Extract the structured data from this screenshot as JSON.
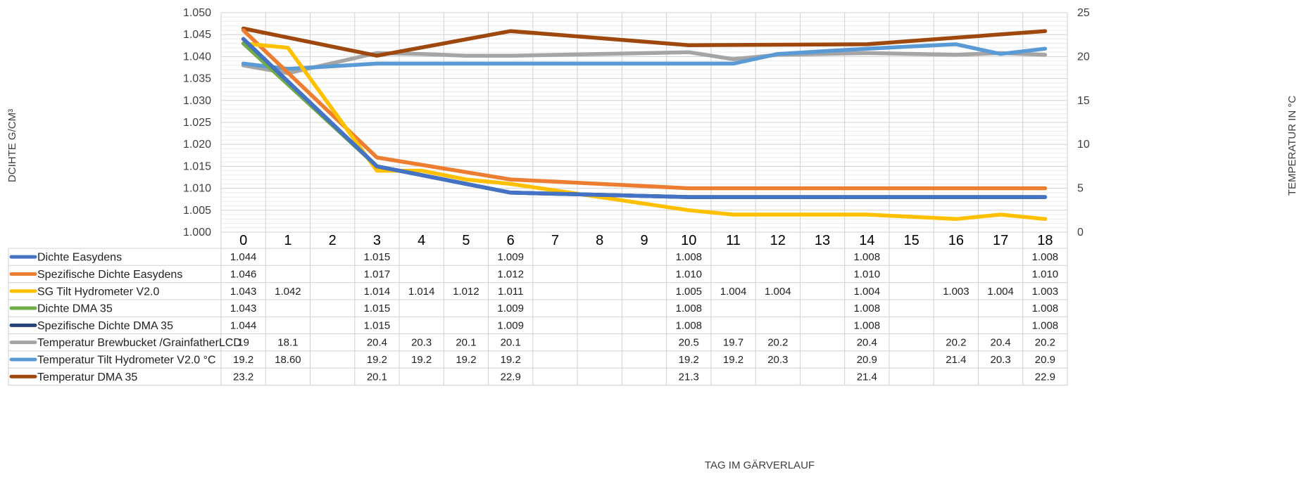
{
  "chart_data": {
    "type": "line",
    "title": "",
    "xlabel": "TAG IM GÄRVERLAUF",
    "ylabel_left": "DCIHTE G/CM³",
    "ylabel_right": "TEMPERATUR IN °C",
    "x": [
      0,
      1,
      2,
      3,
      4,
      5,
      6,
      7,
      8,
      9,
      10,
      11,
      12,
      13,
      14,
      15,
      16,
      17,
      18
    ],
    "x_labels": [
      "0",
      "1",
      "2",
      "3",
      "4",
      "5",
      "6",
      "7",
      "8",
      "9",
      "10",
      "11",
      "12",
      "13",
      "14",
      "15",
      "16",
      "17",
      "18"
    ],
    "ylim_left": [
      1.0,
      1.05
    ],
    "ylim_right": [
      0,
      25
    ],
    "y_ticks_left": [
      "1.000",
      "1.005",
      "1.010",
      "1.015",
      "1.020",
      "1.025",
      "1.030",
      "1.035",
      "1.040",
      "1.045",
      "1.050"
    ],
    "y_ticks_right": [
      "0",
      "5",
      "10",
      "15",
      "20",
      "25"
    ],
    "grid": true,
    "legend": "data-table",
    "series": [
      {
        "name": "Dichte Easydens",
        "axis": "left",
        "color": "#4472c4",
        "values": [
          1.044,
          null,
          null,
          1.015,
          null,
          null,
          1.009,
          null,
          null,
          null,
          1.008,
          null,
          null,
          null,
          1.008,
          null,
          null,
          null,
          1.008
        ],
        "labels": [
          "1.044",
          "",
          "",
          "1.015",
          "",
          "",
          "1.009",
          "",
          "",
          "",
          "1.008",
          "",
          "",
          "",
          "1.008",
          "",
          "",
          "",
          "1.008"
        ]
      },
      {
        "name": "Spezifische Dichte Easydens",
        "axis": "left",
        "color": "#ed7d31",
        "values": [
          1.046,
          null,
          null,
          1.017,
          null,
          null,
          1.012,
          null,
          null,
          null,
          1.01,
          null,
          null,
          null,
          1.01,
          null,
          null,
          null,
          1.01
        ],
        "labels": [
          "1.046",
          "",
          "",
          "1.017",
          "",
          "",
          "1.012",
          "",
          "",
          "",
          "1.010",
          "",
          "",
          "",
          "1.010",
          "",
          "",
          "",
          "1.010"
        ]
      },
      {
        "name": "SG Tilt Hydrometer V2.0",
        "axis": "left",
        "color": "#ffc000",
        "values": [
          1.043,
          1.042,
          null,
          1.014,
          1.014,
          1.012,
          1.011,
          null,
          null,
          null,
          1.005,
          1.004,
          1.004,
          null,
          1.004,
          null,
          1.003,
          1.004,
          1.003
        ],
        "labels": [
          "1.043",
          "1.042",
          "",
          "1.014",
          "1.014",
          "1.012",
          "1.011",
          "",
          "",
          "",
          "1.005",
          "1.004",
          "1.004",
          "",
          "1.004",
          "",
          "1.003",
          "1.004",
          "1.003"
        ]
      },
      {
        "name": "Dichte DMA 35",
        "axis": "left",
        "color": "#70ad47",
        "values": [
          1.043,
          null,
          null,
          1.015,
          null,
          null,
          1.009,
          null,
          null,
          null,
          1.008,
          null,
          null,
          null,
          1.008,
          null,
          null,
          null,
          1.008
        ],
        "labels": [
          "1.043",
          "",
          "",
          "1.015",
          "",
          "",
          "1.009",
          "",
          "",
          "",
          "1.008",
          "",
          "",
          "",
          "1.008",
          "",
          "",
          "",
          "1.008"
        ]
      },
      {
        "name": "Spezifische Dichte DMA 35",
        "axis": "left",
        "color": "#264478",
        "values": [
          1.044,
          null,
          null,
          1.015,
          null,
          null,
          1.009,
          null,
          null,
          null,
          1.008,
          null,
          null,
          null,
          1.008,
          null,
          null,
          null,
          1.008
        ],
        "labels": [
          "1.044",
          "",
          "",
          "1.015",
          "",
          "",
          "1.009",
          "",
          "",
          "",
          "1.008",
          "",
          "",
          "",
          "1.008",
          "",
          "",
          "",
          "1.008"
        ]
      },
      {
        "name": "Temperatur Brewbucket /GrainfatherLCD",
        "axis": "right",
        "color": "#a5a5a5",
        "values": [
          19,
          18.1,
          null,
          20.4,
          20.3,
          20.1,
          20.1,
          null,
          null,
          null,
          20.5,
          19.7,
          20.2,
          null,
          20.4,
          null,
          20.2,
          20.4,
          20.2
        ],
        "labels": [
          "19",
          "18.1",
          "",
          "20.4",
          "20.3",
          "20.1",
          "20.1",
          "",
          "",
          "",
          "20.5",
          "19.7",
          "20.2",
          "",
          "20.4",
          "",
          "20.2",
          "20.4",
          "20.2"
        ]
      },
      {
        "name": "Temperatur Tilt Hydrometer V2.0 °C",
        "axis": "right",
        "color": "#5b9bd5",
        "values": [
          19.2,
          18.6,
          null,
          19.2,
          19.2,
          19.2,
          19.2,
          null,
          null,
          null,
          19.2,
          19.2,
          20.3,
          null,
          20.9,
          null,
          21.4,
          20.3,
          20.9
        ],
        "labels": [
          "19.2",
          "18.60",
          "",
          "19.2",
          "19.2",
          "19.2",
          "19.2",
          "",
          "",
          "",
          "19.2",
          "19.2",
          "20.3",
          "",
          "20.9",
          "",
          "21.4",
          "20.3",
          "20.9"
        ]
      },
      {
        "name": "Temperatur DMA 35",
        "axis": "right",
        "color": "#9e480e",
        "values": [
          23.2,
          null,
          null,
          20.1,
          null,
          null,
          22.9,
          null,
          null,
          null,
          21.3,
          null,
          null,
          null,
          21.4,
          null,
          null,
          null,
          22.9
        ],
        "labels": [
          "23.2",
          "",
          "",
          "20.1",
          "",
          "",
          "22.9",
          "",
          "",
          "",
          "21.3",
          "",
          "",
          "",
          "21.4",
          "",
          "",
          "",
          "22.9"
        ]
      }
    ]
  }
}
